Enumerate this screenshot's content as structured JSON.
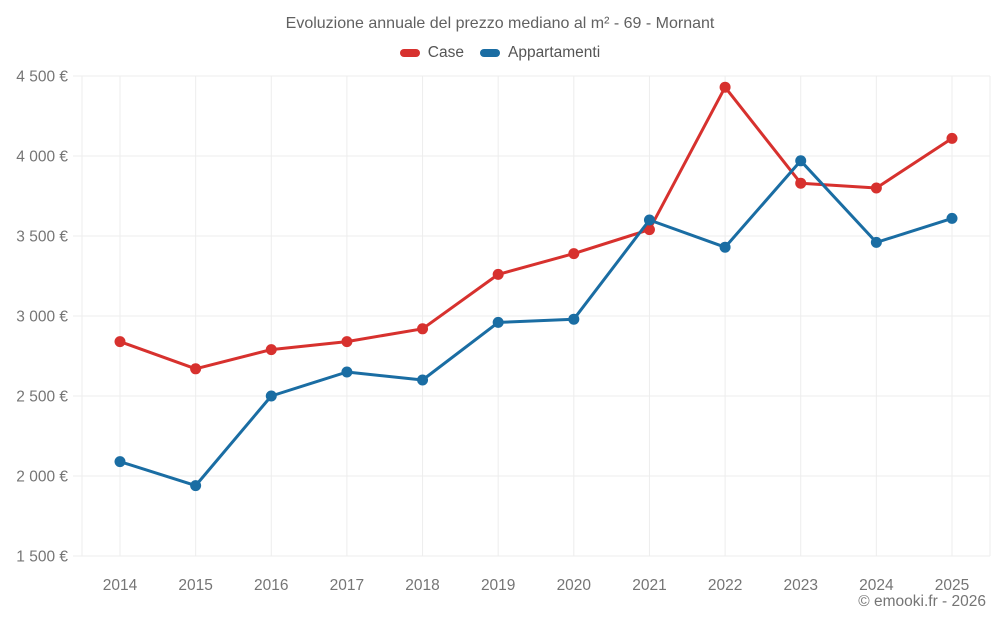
{
  "title": "Evoluzione annuale del prezzo mediano al m² - 69 - Mornant",
  "copyright": "© emooki.fr - 2026",
  "legend": [
    {
      "label": "Case",
      "color": "#d7312e"
    },
    {
      "label": "Appartamenti",
      "color": "#1a6da3"
    }
  ],
  "colors": {
    "case_red": "#d7312e",
    "appartamenti_blue": "#1a6da3",
    "gridline": "#ededed",
    "title_text": "#616161",
    "axis_text": "#757575"
  },
  "chart_data": {
    "type": "line",
    "title": "Evoluzione annuale del prezzo mediano al m² - 69 - Mornant",
    "xlabel": "",
    "ylabel": "",
    "categories": [
      "2014",
      "2015",
      "2016",
      "2017",
      "2018",
      "2019",
      "2020",
      "2021",
      "2022",
      "2023",
      "2024",
      "2025"
    ],
    "series": [
      {
        "name": "Case",
        "color": "#d7312e",
        "values": [
          2840,
          2670,
          2790,
          2840,
          2920,
          3260,
          3390,
          3540,
          4430,
          3830,
          3800,
          4110
        ]
      },
      {
        "name": "Appartamenti",
        "color": "#1a6da3",
        "values": [
          2090,
          1940,
          2500,
          2650,
          2600,
          2960,
          2980,
          3600,
          3430,
          3970,
          3460,
          3610
        ]
      }
    ],
    "ylim": [
      1500,
      4500
    ],
    "y_ticks": [
      1500,
      2000,
      2500,
      3000,
      3500,
      4000,
      4500
    ],
    "y_tick_labels": [
      "1 500 €",
      "2 000 €",
      "2 500 €",
      "3 000 €",
      "3 500 €",
      "4 000 €",
      "4 500 €"
    ],
    "grid": true,
    "legend_position": "top",
    "currency": "€"
  }
}
